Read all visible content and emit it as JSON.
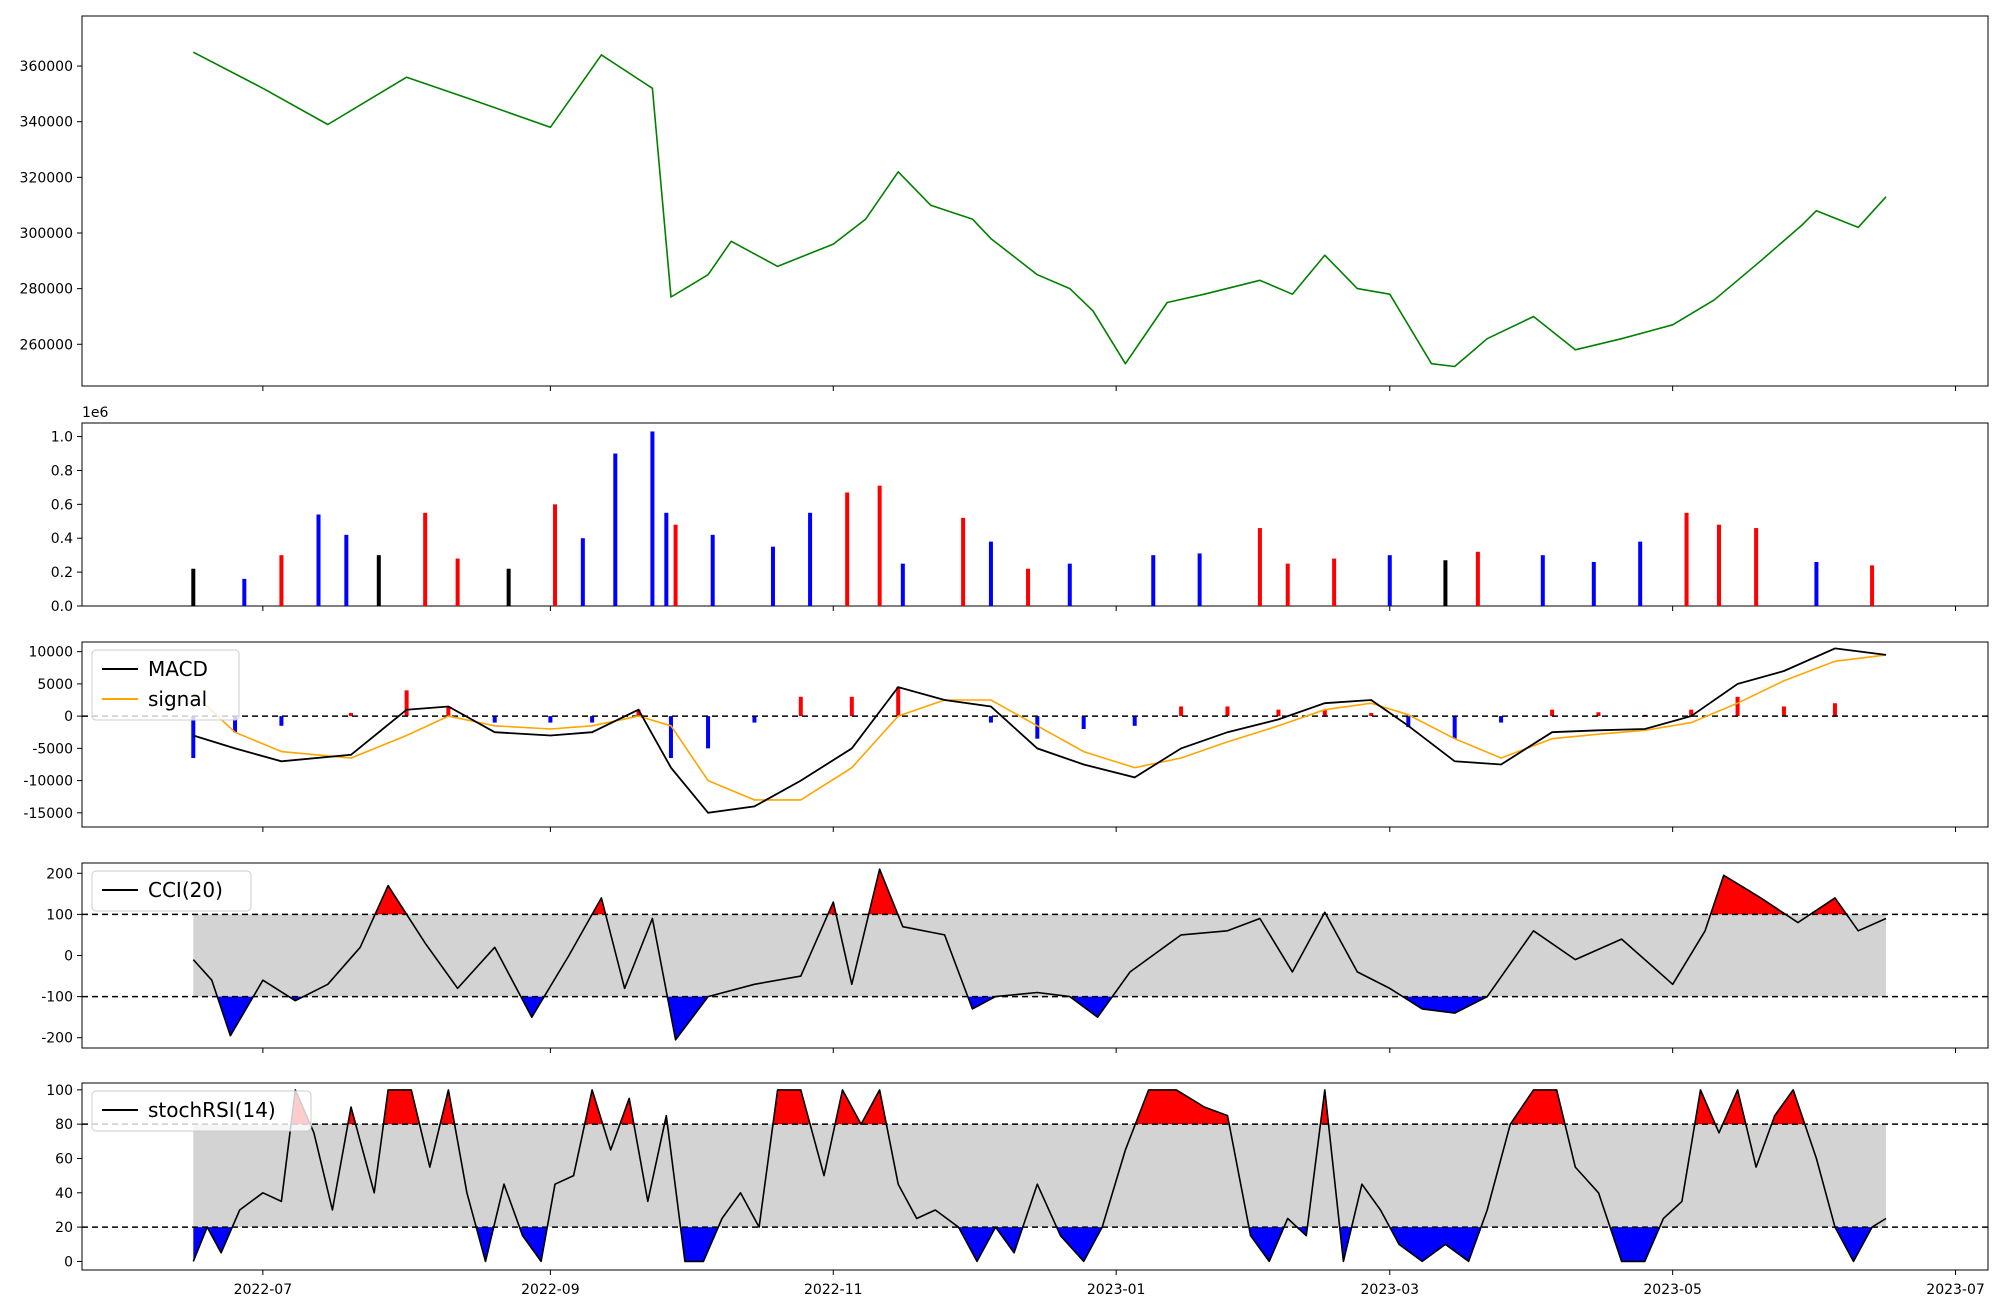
{
  "chart_data": [
    {
      "type": "line",
      "name": "price",
      "ylim": [
        245000,
        378000
      ],
      "yticks": [
        260000,
        280000,
        300000,
        320000,
        340000,
        360000
      ],
      "color": "#008000",
      "x": [
        "2022-06-16",
        "2022-07-01",
        "2022-07-15",
        "2022-08-01",
        "2022-08-15",
        "2022-09-01",
        "2022-09-12",
        "2022-09-23",
        "2022-09-27",
        "2022-10-05",
        "2022-10-10",
        "2022-10-20",
        "2022-11-01",
        "2022-11-08",
        "2022-11-15",
        "2022-11-22",
        "2022-12-01",
        "2022-12-05",
        "2022-12-15",
        "2022-12-22",
        "2022-12-27",
        "2023-01-03",
        "2023-01-12",
        "2023-01-20",
        "2023-02-01",
        "2023-02-08",
        "2023-02-15",
        "2023-02-22",
        "2023-03-01",
        "2023-03-10",
        "2023-03-15",
        "2023-03-22",
        "2023-04-01",
        "2023-04-10",
        "2023-04-20",
        "2023-05-01",
        "2023-05-10",
        "2023-05-20",
        "2023-05-29",
        "2023-06-01",
        "2023-06-10",
        "2023-06-16"
      ],
      "values": [
        365000,
        352000,
        339000,
        356000,
        348000,
        338000,
        364000,
        352000,
        277000,
        285000,
        297000,
        288000,
        296000,
        305000,
        322000,
        310000,
        305000,
        298000,
        285000,
        280000,
        272000,
        253000,
        275000,
        278000,
        283000,
        278000,
        292000,
        280000,
        278000,
        253000,
        252000,
        262000,
        270000,
        258000,
        262000,
        267000,
        276000,
        290000,
        303000,
        308000,
        302000,
        313000
      ]
    },
    {
      "type": "bar",
      "name": "volume",
      "ylim": [
        0,
        1.08
      ],
      "yticks": [
        0.0,
        0.2,
        0.4,
        0.6,
        0.8,
        1.0
      ],
      "offset_label": "1e6",
      "colors": {
        "up": "#ff0000",
        "down": "#0000ff",
        "flat": "#000000"
      },
      "x": [
        "2022-06-16",
        "2022-06-27",
        "2022-07-05",
        "2022-07-13",
        "2022-07-19",
        "2022-07-26",
        "2022-08-05",
        "2022-08-12",
        "2022-08-23",
        "2022-09-02",
        "2022-09-08",
        "2022-09-15",
        "2022-09-23",
        "2022-09-26",
        "2022-09-28",
        "2022-10-06",
        "2022-10-19",
        "2022-10-27",
        "2022-11-04",
        "2022-11-11",
        "2022-11-16",
        "2022-11-29",
        "2022-12-05",
        "2022-12-13",
        "2022-12-22",
        "2023-01-09",
        "2023-01-19",
        "2023-02-01",
        "2023-02-07",
        "2023-02-17",
        "2023-03-01",
        "2023-03-13",
        "2023-03-20",
        "2023-04-03",
        "2023-04-14",
        "2023-04-24",
        "2023-05-04",
        "2023-05-11",
        "2023-05-19",
        "2023-06-01",
        "2023-06-13"
      ],
      "values": [
        0.22,
        0.16,
        0.3,
        0.54,
        0.42,
        0.3,
        0.55,
        0.28,
        0.22,
        0.6,
        0.4,
        0.9,
        1.03,
        0.55,
        0.48,
        0.42,
        0.35,
        0.55,
        0.67,
        0.71,
        0.25,
        0.52,
        0.38,
        0.22,
        0.25,
        0.3,
        0.31,
        0.46,
        0.25,
        0.28,
        0.3,
        0.27,
        0.32,
        0.3,
        0.26,
        0.38,
        0.55,
        0.48,
        0.46,
        0.26,
        0.24
      ],
      "dirs": [
        "flat",
        "down",
        "up",
        "down",
        "down",
        "flat",
        "up",
        "up",
        "flat",
        "up",
        "down",
        "down",
        "down",
        "down",
        "up",
        "down",
        "down",
        "down",
        "up",
        "up",
        "down",
        "up",
        "down",
        "up",
        "down",
        "down",
        "down",
        "up",
        "up",
        "up",
        "down",
        "flat",
        "up",
        "down",
        "down",
        "down",
        "up",
        "up",
        "up",
        "down",
        "up"
      ]
    },
    {
      "type": "line",
      "name": "macd",
      "ylim": [
        -17200,
        11500
      ],
      "yticks": [
        -15000,
        -10000,
        -5000,
        0,
        5000,
        10000
      ],
      "legend": [
        {
          "label": "MACD",
          "color": "#000000"
        },
        {
          "label": "signal",
          "color": "#ffa500"
        }
      ],
      "histogram_colors": {
        "pos": "#ff0000",
        "neg": "#0000ff"
      },
      "x": [
        "2022-06-16",
        "2022-06-25",
        "2022-07-05",
        "2022-07-20",
        "2022-08-01",
        "2022-08-10",
        "2022-08-20",
        "2022-09-01",
        "2022-09-10",
        "2022-09-20",
        "2022-09-27",
        "2022-10-05",
        "2022-10-15",
        "2022-10-25",
        "2022-11-05",
        "2022-11-15",
        "2022-11-25",
        "2022-12-05",
        "2022-12-15",
        "2022-12-25",
        "2023-01-05",
        "2023-01-15",
        "2023-01-25",
        "2023-02-05",
        "2023-02-15",
        "2023-02-25",
        "2023-03-05",
        "2023-03-15",
        "2023-03-25",
        "2023-04-05",
        "2023-04-15",
        "2023-04-25",
        "2023-05-05",
        "2023-05-15",
        "2023-05-25",
        "2023-06-05",
        "2023-06-16"
      ],
      "macd": [
        -3000,
        -5000,
        -7000,
        -6000,
        1000,
        1500,
        -2500,
        -3000,
        -2500,
        1000,
        -8000,
        -15000,
        -14000,
        -10000,
        -5000,
        4500,
        2500,
        1500,
        -5000,
        -7500,
        -9500,
        -5000,
        -2500,
        -500,
        2000,
        2500,
        -1500,
        -7000,
        -7500,
        -2500,
        -2200,
        -2000,
        0,
        5000,
        7000,
        10500,
        9500
      ],
      "signal": [
        3500,
        -2500,
        -5500,
        -6500,
        -3000,
        0,
        -1500,
        -2000,
        -1500,
        0,
        -1500,
        -10000,
        -13000,
        -13000,
        -8000,
        0,
        2500,
        2500,
        -1500,
        -5500,
        -8000,
        -6500,
        -4000,
        -1500,
        1000,
        2000,
        200,
        -3500,
        -6500,
        -3500,
        -2800,
        -2200,
        -1000,
        2000,
        5500,
        8500,
        9500
      ]
    },
    {
      "type": "line",
      "name": "cci",
      "ylim": [
        -225,
        225
      ],
      "yticks": [
        -200,
        -100,
        0,
        100,
        200
      ],
      "thresholds": [
        -100,
        100
      ],
      "legend": [
        {
          "label": "CCI(20)",
          "color": "#000000"
        }
      ],
      "fill_colors": {
        "band": "#d3d3d3",
        "over": "#ff0000",
        "under": "#0000ff"
      },
      "x": [
        "2022-06-16",
        "2022-06-20",
        "2022-06-24",
        "2022-07-01",
        "2022-07-08",
        "2022-07-15",
        "2022-07-22",
        "2022-07-28",
        "2022-08-05",
        "2022-08-12",
        "2022-08-20",
        "2022-08-28",
        "2022-09-05",
        "2022-09-12",
        "2022-09-17",
        "2022-09-23",
        "2022-09-28",
        "2022-10-05",
        "2022-10-15",
        "2022-10-25",
        "2022-11-01",
        "2022-11-05",
        "2022-11-11",
        "2022-11-16",
        "2022-11-25",
        "2022-12-01",
        "2022-12-06",
        "2022-12-15",
        "2022-12-22",
        "2022-12-28",
        "2023-01-04",
        "2023-01-15",
        "2023-01-25",
        "2023-02-01",
        "2023-02-08",
        "2023-02-15",
        "2023-02-22",
        "2023-03-01",
        "2023-03-08",
        "2023-03-15",
        "2023-03-22",
        "2023-04-01",
        "2023-04-10",
        "2023-04-20",
        "2023-05-01",
        "2023-05-08",
        "2023-05-12",
        "2023-05-20",
        "2023-05-28",
        "2023-06-05",
        "2023-06-10",
        "2023-06-16"
      ],
      "values": [
        -10,
        -60,
        -195,
        -60,
        -110,
        -70,
        20,
        170,
        30,
        -80,
        20,
        -150,
        0,
        140,
        -80,
        90,
        -205,
        -100,
        -70,
        -50,
        130,
        -70,
        210,
        70,
        50,
        -130,
        -100,
        -90,
        -100,
        -150,
        -40,
        50,
        60,
        90,
        -40,
        105,
        -40,
        -80,
        -130,
        -140,
        -100,
        60,
        -10,
        40,
        -70,
        60,
        195,
        140,
        80,
        140,
        60,
        90
      ]
    },
    {
      "type": "line",
      "name": "stochrsi",
      "ylim": [
        -5,
        104
      ],
      "yticks": [
        0,
        20,
        40,
        60,
        80,
        100
      ],
      "thresholds": [
        20,
        80
      ],
      "legend": [
        {
          "label": "stochRSI(14)",
          "color": "#000000"
        }
      ],
      "fill_colors": {
        "band": "#d3d3d3",
        "over": "#ff0000",
        "under": "#0000ff"
      },
      "x": [
        "2022-06-16",
        "2022-06-19",
        "2022-06-22",
        "2022-06-26",
        "2022-07-01",
        "2022-07-05",
        "2022-07-08",
        "2022-07-12",
        "2022-07-16",
        "2022-07-20",
        "2022-07-25",
        "2022-07-28",
        "2022-08-02",
        "2022-08-06",
        "2022-08-10",
        "2022-08-14",
        "2022-08-18",
        "2022-08-22",
        "2022-08-26",
        "2022-08-30",
        "2022-09-02",
        "2022-09-06",
        "2022-09-10",
        "2022-09-14",
        "2022-09-18",
        "2022-09-22",
        "2022-09-26",
        "2022-09-30",
        "2022-10-04",
        "2022-10-08",
        "2022-10-12",
        "2022-10-16",
        "2022-10-20",
        "2022-10-25",
        "2022-10-30",
        "2022-11-03",
        "2022-11-07",
        "2022-11-11",
        "2022-11-15",
        "2022-11-19",
        "2022-11-23",
        "2022-11-28",
        "2022-12-02",
        "2022-12-06",
        "2022-12-10",
        "2022-12-15",
        "2022-12-20",
        "2022-12-25",
        "2022-12-29",
        "2023-01-03",
        "2023-01-08",
        "2023-01-14",
        "2023-01-20",
        "2023-01-25",
        "2023-01-30",
        "2023-02-03",
        "2023-02-07",
        "2023-02-11",
        "2023-02-15",
        "2023-02-19",
        "2023-02-23",
        "2023-02-27",
        "2023-03-03",
        "2023-03-08",
        "2023-03-13",
        "2023-03-18",
        "2023-03-22",
        "2023-03-27",
        "2023-04-01",
        "2023-04-06",
        "2023-04-10",
        "2023-04-15",
        "2023-04-20",
        "2023-04-25",
        "2023-04-29",
        "2023-05-03",
        "2023-05-07",
        "2023-05-11",
        "2023-05-15",
        "2023-05-19",
        "2023-05-23",
        "2023-05-27",
        "2023-06-01",
        "2023-06-05",
        "2023-06-09",
        "2023-06-13",
        "2023-06-16"
      ],
      "values": [
        0,
        20,
        5,
        30,
        40,
        35,
        100,
        75,
        30,
        90,
        40,
        100,
        100,
        55,
        100,
        40,
        0,
        45,
        15,
        0,
        45,
        50,
        100,
        65,
        95,
        35,
        85,
        0,
        0,
        25,
        40,
        20,
        100,
        100,
        50,
        100,
        80,
        100,
        45,
        25,
        30,
        20,
        0,
        20,
        5,
        45,
        15,
        0,
        20,
        65,
        100,
        100,
        90,
        85,
        15,
        0,
        25,
        15,
        100,
        0,
        45,
        30,
        10,
        0,
        10,
        0,
        30,
        80,
        100,
        100,
        55,
        40,
        0,
        0,
        25,
        35,
        100,
        75,
        100,
        55,
        85,
        100,
        60,
        20,
        0,
        20,
        25
      ]
    }
  ],
  "x_axis": {
    "tick_labels": [
      "2022-07",
      "2022-09",
      "2022-11",
      "2023-01",
      "2023-03",
      "2023-05",
      "2023-07"
    ],
    "tick_dates": [
      "2022-07-01",
      "2022-09-01",
      "2022-11-01",
      "2023-01-01",
      "2023-03-01",
      "2023-05-01",
      "2023-07-01"
    ],
    "range": [
      "2022-05-23",
      "2023-07-08"
    ]
  }
}
